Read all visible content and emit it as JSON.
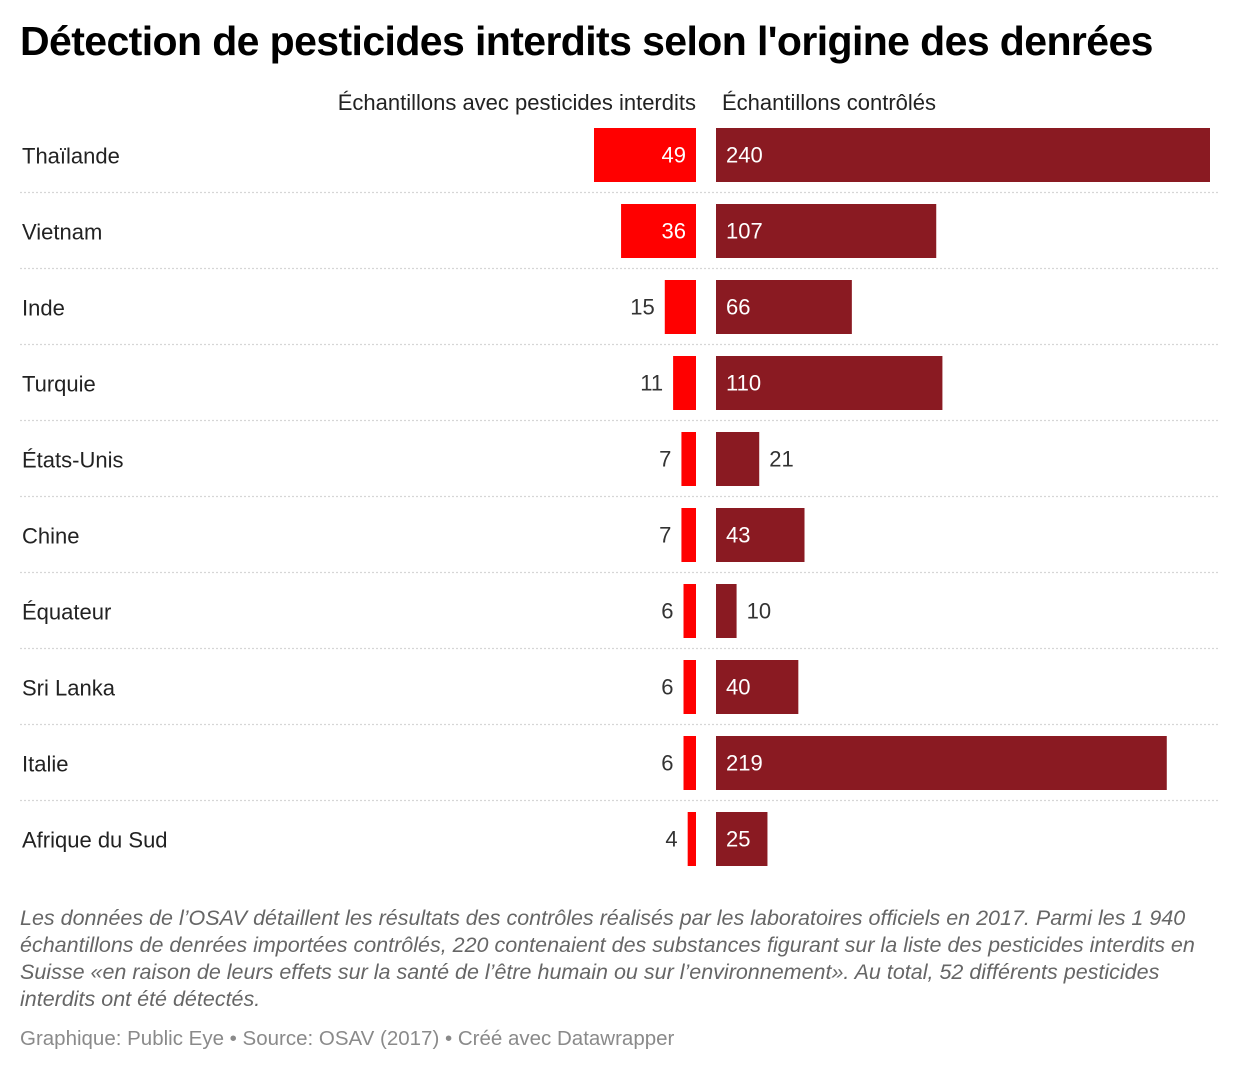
{
  "title": "Détection de pesticides interdits selon l'origine des denrées",
  "chart_data": {
    "type": "bar",
    "orientation": "horizontal",
    "columns": [
      {
        "name": "Échantillons avec pesticides interdits",
        "color": "#ff0000"
      },
      {
        "name": "Échantillons contrôlés",
        "color": "#8a1a22"
      }
    ],
    "categories": [
      "Thaïlande",
      "Vietnam",
      "Inde",
      "Turquie",
      "États-Unis",
      "Chine",
      "Équateur",
      "Sri Lanka",
      "Italie",
      "Afrique du Sud"
    ],
    "series": [
      {
        "name": "Échantillons avec pesticides interdits",
        "values": [
          49,
          36,
          15,
          11,
          7,
          7,
          6,
          6,
          6,
          4
        ]
      },
      {
        "name": "Échantillons contrôlés",
        "values": [
          240,
          107,
          66,
          110,
          21,
          43,
          10,
          40,
          219,
          25
        ]
      }
    ],
    "xlim": [
      0,
      240
    ],
    "grid": false
  },
  "footnote": "Les données de l’OSAV détaillent les résultats des contrôles réalisés par les laboratoires officiels en 2017. Parmi les 1 940 échantillons de denrées importées contrôlés, 220 contenaient des substances figurant sur la liste des pesticides interdits en Suisse «en raison de leurs effets sur la santé de l’être humain ou sur l’environnement». Au total, 52 différents pesticides interdits ont été détectés.",
  "credits": "Graphique: Public Eye • Source: OSAV (2017) • Créé avec Datawrapper"
}
